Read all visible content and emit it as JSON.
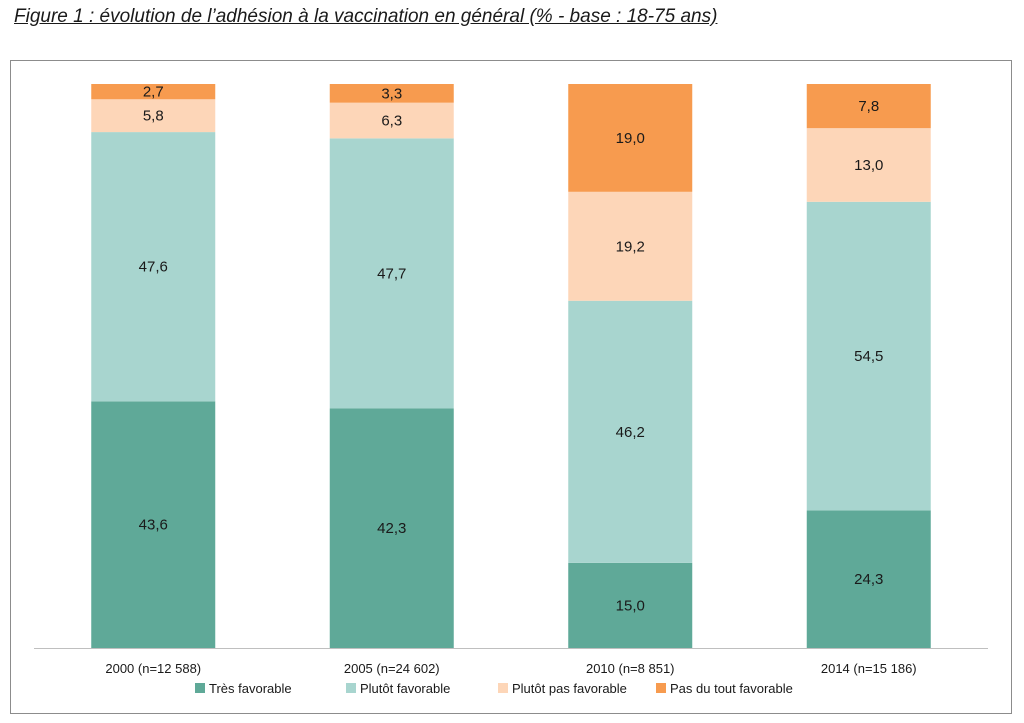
{
  "chart_data": {
    "type": "bar",
    "stacked": true,
    "title": "Figure 1 : évolution de l’adhésion à la vaccination en général (% - base : 18-75 ans)",
    "categories": [
      "2000 (n=12 588)",
      "2005 (n=24 602)",
      "2010 (n=8 851)",
      "2014 (n=15 186)"
    ],
    "series": [
      {
        "name": "Très favorable",
        "values": [
          43.6,
          42.3,
          15.0,
          24.3
        ],
        "labels": [
          "43,6",
          "42,3",
          "15,0",
          "24,3"
        ],
        "color": "#5fa998"
      },
      {
        "name": "Plutôt favorable",
        "values": [
          47.6,
          47.7,
          46.2,
          54.5
        ],
        "labels": [
          "47,6",
          "47,7",
          "46,2",
          "54,5"
        ],
        "color": "#a8d5cf"
      },
      {
        "name": "Plutôt pas favorable",
        "values": [
          5.8,
          6.3,
          19.2,
          13.0
        ],
        "labels": [
          "5,8",
          "6,3",
          "19,2",
          "13,0"
        ],
        "color": "#fdd6b8"
      },
      {
        "name": "Pas du tout favorable",
        "values": [
          2.7,
          3.3,
          19.0,
          7.8
        ],
        "labels": [
          "2,7",
          "3,3",
          "19,0",
          "7,8"
        ],
        "color": "#f79b4f"
      }
    ],
    "ylim": [
      0,
      100
    ],
    "legend_position": "bottom",
    "grid": false
  }
}
